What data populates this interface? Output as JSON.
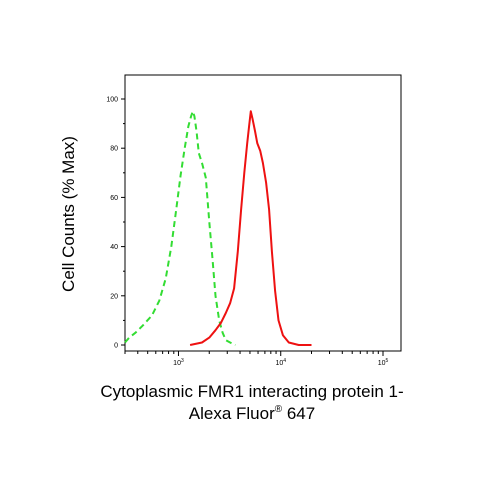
{
  "chart_data": {
    "type": "line",
    "title": "",
    "ylabel": "Cell Counts (% Max)",
    "xlabel_line1": "Cytoplasmic FMR1 interacting protein 1-",
    "xlabel_line2_text": "Alexa Fluor",
    "xlabel_line2_sup": "®",
    "xlabel_line2_tail": " 647",
    "xscale": "log",
    "xlim": [
      300,
      150000
    ],
    "ylim": [
      0,
      100
    ],
    "y_ticks": [
      "0",
      "20",
      "40",
      "60",
      "80",
      "100"
    ],
    "x_ticks": [
      {
        "base": "10",
        "exp": "3",
        "value": 1000
      },
      {
        "base": "10",
        "exp": "4",
        "value": 10000
      },
      {
        "base": "10",
        "exp": "5",
        "value": 100000
      }
    ],
    "grid": false,
    "series": [
      {
        "color": "#33dd33",
        "dash": "dashed",
        "x": [
          300,
          330,
          380,
          450,
          550,
          650,
          750,
          850,
          950,
          1050,
          1150,
          1250,
          1330,
          1380,
          1430,
          1500,
          1580,
          1700,
          1850,
          2000,
          2150,
          2300,
          2500,
          2700,
          2900,
          3200,
          3600
        ],
        "y": [
          1,
          3,
          5,
          8,
          12,
          18,
          27,
          40,
          55,
          69,
          80,
          89,
          93,
          95,
          93,
          87,
          78,
          74,
          68,
          50,
          35,
          20,
          10,
          5,
          2,
          1,
          0
        ]
      },
      {
        "color": "#ee1111",
        "dash": "solid",
        "x": [
          1300,
          1700,
          2000,
          2300,
          2600,
          2900,
          3200,
          3500,
          3800,
          4100,
          4400,
          4700,
          4900,
          5100,
          5300,
          5600,
          5900,
          6300,
          6700,
          7200,
          7700,
          8200,
          8800,
          9500,
          10500,
          12000,
          15000,
          20000
        ],
        "y": [
          0,
          1,
          3,
          6,
          9,
          13,
          17,
          23,
          38,
          55,
          70,
          82,
          89,
          95,
          92,
          87,
          82,
          79,
          74,
          66,
          55,
          38,
          22,
          10,
          4,
          1,
          0,
          0
        ]
      }
    ]
  }
}
